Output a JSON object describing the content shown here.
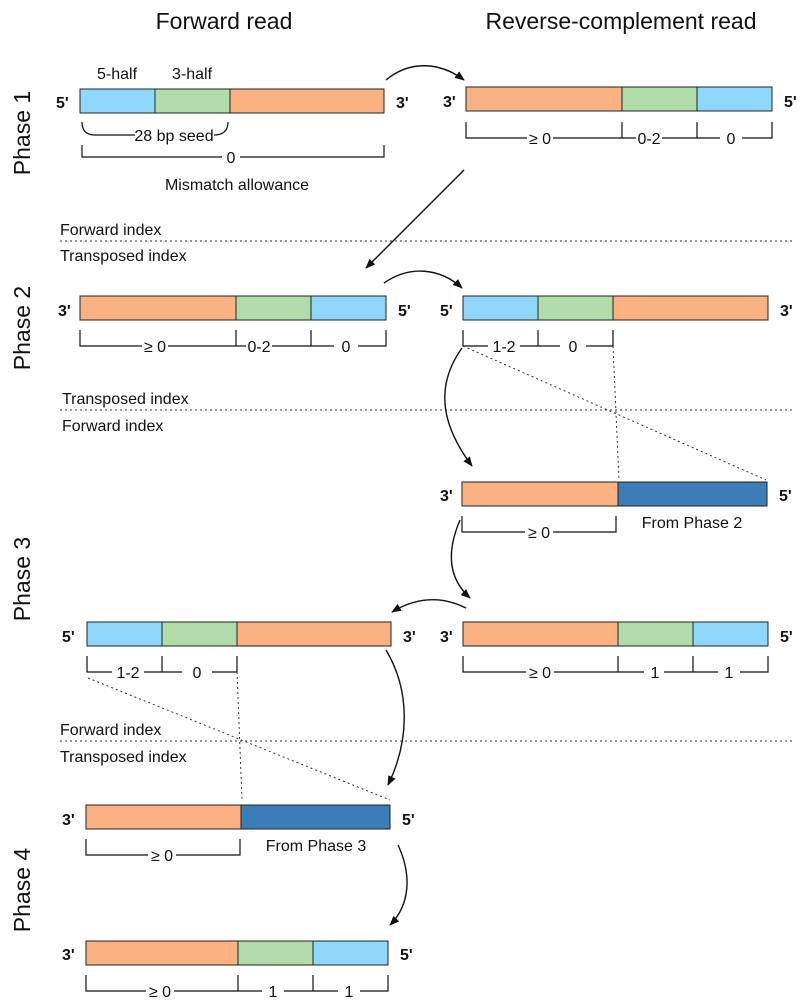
{
  "headers": {
    "forward": "Forward read",
    "reverse": "Reverse-complement read"
  },
  "phases": [
    "Phase 1",
    "Phase 2",
    "Phase 3",
    "Phase 4"
  ],
  "ends": {
    "five": "5'",
    "three": "3'"
  },
  "labels": {
    "five_half": "5-half",
    "three_half": "3-half",
    "seed": "28 bp seed",
    "mismatch_allowance": "Mismatch allowance",
    "from_phase_2": "From Phase 2",
    "from_phase_3": "From Phase 3"
  },
  "index": {
    "forward": "Forward index",
    "transposed": "Transposed index"
  },
  "allowances": {
    "ge0": "≥ 0",
    "zero": "0",
    "zero_two": "0-2",
    "one_two": "1-2",
    "one": "1"
  },
  "colors": {
    "light_blue": "#8fd8fb",
    "green": "#b0dcaa",
    "orange": "#fbb283",
    "dark_blue": "#3a7db7"
  }
}
